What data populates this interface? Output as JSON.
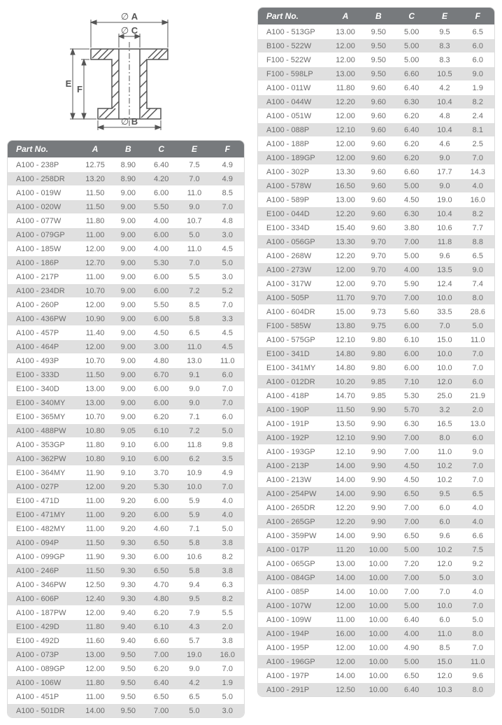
{
  "diagram": {
    "labels": {
      "A": "A",
      "B": "B",
      "C": "C",
      "E": "E",
      "F": "F"
    },
    "diam_symbol": "∅",
    "stroke": "#555555",
    "fill": "#555555"
  },
  "headers": [
    "Part No.",
    "A",
    "B",
    "C",
    "E",
    "F"
  ],
  "table_left": [
    [
      "A100 - 238P",
      "12.75",
      "8.90",
      "6.40",
      "7.5",
      "4.9"
    ],
    [
      "A100 - 258DR",
      "13.20",
      "8.90",
      "4.20",
      "7.0",
      "4.9"
    ],
    [
      "A100 - 019W",
      "11.50",
      "9.00",
      "6.00",
      "11.0",
      "8.5"
    ],
    [
      "A100 - 020W",
      "11.50",
      "9.00",
      "5.50",
      "9.0",
      "7.0"
    ],
    [
      "A100 - 077W",
      "11.80",
      "9.00",
      "4.00",
      "10.7",
      "4.8"
    ],
    [
      "A100 - 079GP",
      "11.00",
      "9.00",
      "6.00",
      "5.0",
      "3.0"
    ],
    [
      "A100 - 185W",
      "12.00",
      "9.00",
      "4.00",
      "11.0",
      "4.5"
    ],
    [
      "A100 - 186P",
      "12.70",
      "9.00",
      "5.30",
      "7.0",
      "5.0"
    ],
    [
      "A100 - 217P",
      "11.00",
      "9.00",
      "6.00",
      "5.5",
      "3.0"
    ],
    [
      "A100 - 234DR",
      "10.70",
      "9.00",
      "6.00",
      "7.2",
      "5.2"
    ],
    [
      "A100 - 260P",
      "12.00",
      "9.00",
      "5.50",
      "8.5",
      "7.0"
    ],
    [
      "A100 - 436PW",
      "10.90",
      "9.00",
      "6.00",
      "5.8",
      "3.3"
    ],
    [
      "A100 - 457P",
      "11.40",
      "9.00",
      "4.50",
      "6.5",
      "4.5"
    ],
    [
      "A100 - 464P",
      "12.00",
      "9.00",
      "3.00",
      "11.0",
      "4.5"
    ],
    [
      "A100 - 493P",
      "10.70",
      "9.00",
      "4.80",
      "13.0",
      "11.0"
    ],
    [
      "E100 - 333D",
      "11.50",
      "9.00",
      "6.70",
      "9.1",
      "6.0"
    ],
    [
      "E100 - 340D",
      "13.00",
      "9.00",
      "6.00",
      "9.0",
      "7.0"
    ],
    [
      "E100 - 340MY",
      "13.00",
      "9.00",
      "6.00",
      "9.0",
      "7.0"
    ],
    [
      "E100 - 365MY",
      "10.70",
      "9.00",
      "6.20",
      "7.1",
      "6.0"
    ],
    [
      "A100 - 488PW",
      "10.80",
      "9.05",
      "6.10",
      "7.2",
      "5.0"
    ],
    [
      "A100 - 353GP",
      "11.80",
      "9.10",
      "6.00",
      "11.8",
      "9.8"
    ],
    [
      "A100 - 362PW",
      "10.80",
      "9.10",
      "6.00",
      "6.2",
      "3.5"
    ],
    [
      "E100 - 364MY",
      "11.90",
      "9.10",
      "3.70",
      "10.9",
      "4.9"
    ],
    [
      "A100 - 027P",
      "12.00",
      "9.20",
      "5.30",
      "10.0",
      "7.0"
    ],
    [
      "E100 - 471D",
      "11.00",
      "9.20",
      "6.00",
      "5.9",
      "4.0"
    ],
    [
      "E100 - 471MY",
      "11.00",
      "9.20",
      "6.00",
      "5.9",
      "4.0"
    ],
    [
      "E100 - 482MY",
      "11.00",
      "9.20",
      "4.60",
      "7.1",
      "5.0"
    ],
    [
      "A100 - 094P",
      "11.50",
      "9.30",
      "6.50",
      "5.8",
      "3.8"
    ],
    [
      "A100 - 099GP",
      "11.90",
      "9.30",
      "6.00",
      "10.6",
      "8.2"
    ],
    [
      "A100 - 246P",
      "11.50",
      "9.30",
      "6.50",
      "5.8",
      "3.8"
    ],
    [
      "A100 - 346PW",
      "12.50",
      "9.30",
      "4.70",
      "9.4",
      "6.3"
    ],
    [
      "A100 - 606P",
      "12.40",
      "9.30",
      "4.80",
      "9.5",
      "8.2"
    ],
    [
      "A100 - 187PW",
      "12.00",
      "9.40",
      "6.20",
      "7.9",
      "5.5"
    ],
    [
      "E100 - 429D",
      "11.80",
      "9.40",
      "6.10",
      "4.3",
      "2.0"
    ],
    [
      "E100 - 492D",
      "11.60",
      "9.40",
      "6.60",
      "5.7",
      "3.8"
    ],
    [
      "A100 - 073P",
      "13.00",
      "9.50",
      "7.00",
      "19.0",
      "16.0"
    ],
    [
      "A100 - 089GP",
      "12.00",
      "9.50",
      "6.20",
      "9.0",
      "7.0"
    ],
    [
      "A100 - 106W",
      "11.80",
      "9.50",
      "6.40",
      "4.2",
      "1.9"
    ],
    [
      "A100 - 451P",
      "11.00",
      "9.50",
      "6.50",
      "6.5",
      "5.0"
    ],
    [
      "A100 - 501DR",
      "14.00",
      "9.50",
      "7.00",
      "5.0",
      "3.0"
    ]
  ],
  "table_right": [
    [
      "A100 - 513GP",
      "13.00",
      "9.50",
      "5.00",
      "9.5",
      "6.5"
    ],
    [
      "B100 - 522W",
      "12.00",
      "9.50",
      "5.00",
      "8.3",
      "6.0"
    ],
    [
      "F100 - 522W",
      "12.00",
      "9.50",
      "5.00",
      "8.3",
      "6.0"
    ],
    [
      "F100 - 598LP",
      "13.00",
      "9.50",
      "6.60",
      "10.5",
      "9.0"
    ],
    [
      "A100 - 011W",
      "11.80",
      "9.60",
      "6.40",
      "4.2",
      "1.9"
    ],
    [
      "A100 - 044W",
      "12.20",
      "9.60",
      "6.30",
      "10.4",
      "8.2"
    ],
    [
      "A100 - 051W",
      "12.00",
      "9.60",
      "6.20",
      "4.8",
      "2.4"
    ],
    [
      "A100 - 088P",
      "12.10",
      "9.60",
      "6.40",
      "10.4",
      "8.1"
    ],
    [
      "A100 - 188P",
      "12.00",
      "9.60",
      "6.20",
      "4.6",
      "2.5"
    ],
    [
      "A100 - 189GP",
      "12.00",
      "9.60",
      "6.20",
      "9.0",
      "7.0"
    ],
    [
      "A100 - 302P",
      "13.30",
      "9.60",
      "6.60",
      "17.7",
      "14.3"
    ],
    [
      "A100 - 578W",
      "16.50",
      "9.60",
      "5.00",
      "9.0",
      "4.0"
    ],
    [
      "A100 - 589P",
      "13.00",
      "9.60",
      "4.50",
      "19.0",
      "16.0"
    ],
    [
      "E100 - 044D",
      "12.20",
      "9.60",
      "6.30",
      "10.4",
      "8.2"
    ],
    [
      "E100 - 334D",
      "15.40",
      "9.60",
      "3.80",
      "10.6",
      "7.7"
    ],
    [
      "A100 - 056GP",
      "13.30",
      "9.70",
      "7.00",
      "11.8",
      "8.8"
    ],
    [
      "A100 - 268W",
      "12.20",
      "9.70",
      "5.00",
      "9.6",
      "6.5"
    ],
    [
      "A100 - 273W",
      "12.00",
      "9.70",
      "4.00",
      "13.5",
      "9.0"
    ],
    [
      "A100 - 317W",
      "12.00",
      "9.70",
      "5.90",
      "12.4",
      "7.4"
    ],
    [
      "A100 - 505P",
      "11.70",
      "9.70",
      "7.00",
      "10.0",
      "8.0"
    ],
    [
      "A100 - 604DR",
      "15.00",
      "9.73",
      "5.60",
      "33.5",
      "28.6"
    ],
    [
      "F100 - 585W",
      "13.80",
      "9.75",
      "6.00",
      "7.0",
      "5.0"
    ],
    [
      "A100 - 575GP",
      "12.10",
      "9.80",
      "6.10",
      "15.0",
      "11.0"
    ],
    [
      "E100 - 341D",
      "14.80",
      "9.80",
      "6.00",
      "10.0",
      "7.0"
    ],
    [
      "E100 - 341MY",
      "14.80",
      "9.80",
      "6.00",
      "10.0",
      "7.0"
    ],
    [
      "A100 - 012DR",
      "10.20",
      "9.85",
      "7.10",
      "12.0",
      "6.0"
    ],
    [
      "A100 - 418P",
      "14.70",
      "9.85",
      "5.30",
      "25.0",
      "21.9"
    ],
    [
      "A100 - 190P",
      "11.50",
      "9.90",
      "5.70",
      "3.2",
      "2.0"
    ],
    [
      "A100 - 191P",
      "13.50",
      "9.90",
      "6.30",
      "16.5",
      "13.0"
    ],
    [
      "A100 - 192P",
      "12.10",
      "9.90",
      "7.00",
      "8.0",
      "6.0"
    ],
    [
      "A100 - 193GP",
      "12.10",
      "9.90",
      "7.00",
      "11.0",
      "9.0"
    ],
    [
      "A100 - 213P",
      "14.00",
      "9.90",
      "4.50",
      "10.2",
      "7.0"
    ],
    [
      "A100 - 213W",
      "14.00",
      "9.90",
      "4.50",
      "10.2",
      "7.0"
    ],
    [
      "A100 - 254PW",
      "14.00",
      "9.90",
      "6.50",
      "9.5",
      "6.5"
    ],
    [
      "A100 - 265DR",
      "12.20",
      "9.90",
      "7.00",
      "6.0",
      "4.0"
    ],
    [
      "A100 - 265GP",
      "12.20",
      "9.90",
      "7.00",
      "6.0",
      "4.0"
    ],
    [
      "A100 - 359PW",
      "14.00",
      "9.90",
      "6.50",
      "9.6",
      "6.6"
    ],
    [
      "A100 - 017P",
      "11.20",
      "10.00",
      "5.00",
      "10.2",
      "7.5"
    ],
    [
      "A100 - 065GP",
      "13.00",
      "10.00",
      "7.20",
      "12.0",
      "9.2"
    ],
    [
      "A100 - 084GP",
      "14.00",
      "10.00",
      "7.00",
      "5.0",
      "3.0"
    ],
    [
      "A100 - 085P",
      "14.00",
      "10.00",
      "7.00",
      "7.0",
      "4.0"
    ],
    [
      "A100 - 107W",
      "12.00",
      "10.00",
      "5.00",
      "10.0",
      "7.0"
    ],
    [
      "A100 - 109W",
      "11.00",
      "10.00",
      "6.40",
      "6.0",
      "5.0"
    ],
    [
      "A100 - 194P",
      "16.00",
      "10.00",
      "4.00",
      "11.0",
      "8.0"
    ],
    [
      "A100 - 195P",
      "12.00",
      "10.00",
      "4.90",
      "8.5",
      "7.0"
    ],
    [
      "A100 - 196GP",
      "12.00",
      "10.00",
      "5.00",
      "15.0",
      "11.0"
    ],
    [
      "A100 - 197P",
      "14.00",
      "10.00",
      "6.50",
      "12.0",
      "9.6"
    ],
    [
      "A100 - 291P",
      "12.50",
      "10.00",
      "6.40",
      "10.3",
      "8.0"
    ]
  ]
}
